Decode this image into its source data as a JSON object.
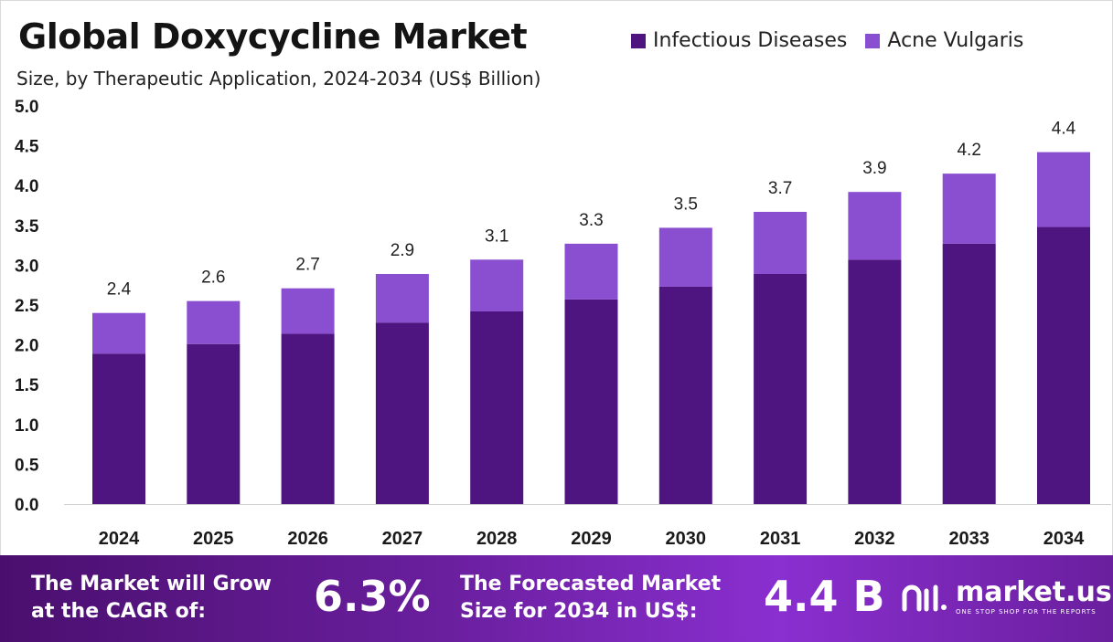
{
  "chart_data": {
    "type": "bar",
    "stacked": true,
    "title": "Global Doxycycline Market",
    "subtitle": "Size, by Therapeutic Application, 2024-2034 (US$ Billion)",
    "categories": [
      "2024",
      "2025",
      "2026",
      "2027",
      "2028",
      "2029",
      "2030",
      "2031",
      "2032",
      "2033",
      "2034"
    ],
    "series": [
      {
        "name": "Infectious Diseases",
        "color": "#4e1580",
        "values": [
          1.89,
          2.01,
          2.14,
          2.28,
          2.42,
          2.57,
          2.73,
          2.89,
          3.07,
          3.27,
          3.48
        ]
      },
      {
        "name": "Acne Vulgaris",
        "color": "#8a4fd1",
        "values": [
          0.51,
          0.54,
          0.57,
          0.61,
          0.65,
          0.7,
          0.74,
          0.78,
          0.85,
          0.88,
          0.94
        ]
      }
    ],
    "totals_labels": [
      "2.4",
      "2.6",
      "2.7",
      "2.9",
      "3.1",
      "3.3",
      "3.5",
      "3.7",
      "3.9",
      "4.2",
      "4.4"
    ],
    "y_ticks": [
      "0.0",
      "0.5",
      "1.0",
      "1.5",
      "2.0",
      "2.5",
      "3.0",
      "3.5",
      "4.0",
      "4.5",
      "5.0"
    ],
    "ylim": [
      0,
      5
    ],
    "grid": false,
    "legend_position": "top-right"
  },
  "banner": {
    "cagr_text_line1": "The Market will Grow",
    "cagr_text_line2": "at the CAGR of:",
    "cagr_value": "6.3%",
    "forecast_text_line1": "The Forecasted Market",
    "forecast_text_line2": "Size for 2034 in US$:",
    "forecast_value": "4.4 B",
    "logo_name": "market.us",
    "logo_tagline": "ONE STOP SHOP FOR THE REPORTS"
  }
}
